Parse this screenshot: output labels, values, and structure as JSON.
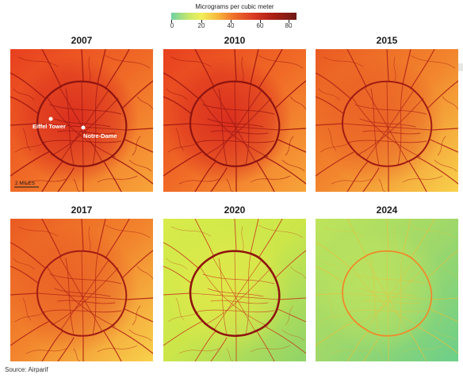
{
  "legend": {
    "title": "Micrograms per cubic meter",
    "ticks": [
      "0",
      "20",
      "40",
      "60",
      "80"
    ],
    "colors": [
      "#6fd1a3",
      "#c8e86a",
      "#f2ef5a",
      "#f7b33a",
      "#ef6f2a",
      "#d93a22",
      "#a91e14",
      "#6e1a14"
    ]
  },
  "panels": [
    {
      "year": "2007",
      "level": "very-high"
    },
    {
      "year": "2010",
      "level": "very-high"
    },
    {
      "year": "2015",
      "level": "high"
    },
    {
      "year": "2017",
      "level": "high"
    },
    {
      "year": "2020",
      "level": "low"
    },
    {
      "year": "2024",
      "level": "very-low"
    }
  ],
  "annotations": {
    "eiffel": "Eiffel Tower",
    "notre_dame": "Notre-Dame",
    "scale": "2 MILES"
  },
  "source": "Source: Airparif"
}
